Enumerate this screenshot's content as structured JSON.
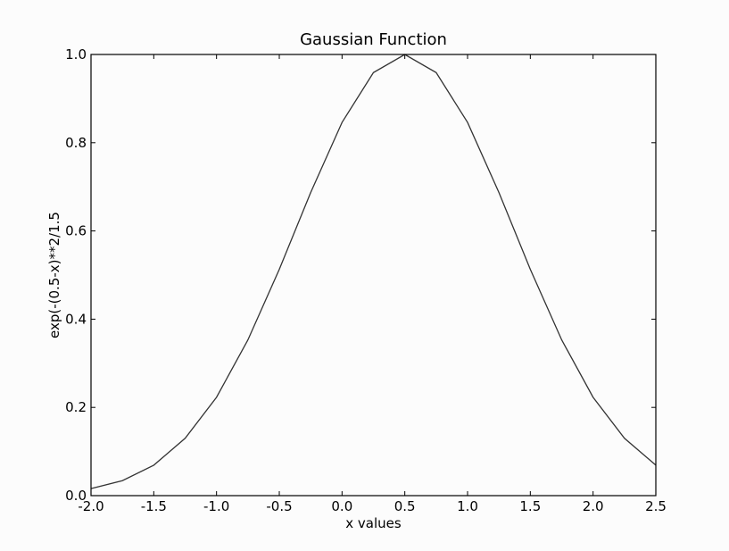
{
  "chart_data": {
    "type": "line",
    "title": "Gaussian Function",
    "xlabel": "x values",
    "ylabel": "exp(-(0.5-x)**2/1.5",
    "xlim": [
      -2.0,
      2.5
    ],
    "ylim": [
      0.0,
      1.0
    ],
    "xticks": [
      "-2.0",
      "-1.5",
      "-1.0",
      "-0.5",
      "0.0",
      "0.5",
      "1.0",
      "1.5",
      "2.0",
      "2.5"
    ],
    "yticks": [
      "0.0",
      "0.2",
      "0.4",
      "0.6",
      "0.8",
      "1.0"
    ],
    "grid": false,
    "line_color": "#333333",
    "series": [
      {
        "x": [
          -2.0,
          -1.75,
          -1.5,
          -1.25,
          -1.0,
          -0.75,
          -0.5,
          -0.25,
          0.0,
          0.25,
          0.5,
          0.75,
          1.0,
          1.25,
          1.5,
          1.75,
          2.0,
          2.25,
          2.5
        ],
        "values": [
          0.016,
          0.034,
          0.069,
          0.13,
          0.223,
          0.353,
          0.513,
          0.687,
          0.846,
          0.959,
          1.0,
          0.959,
          0.846,
          0.687,
          0.513,
          0.353,
          0.223,
          0.13,
          0.069
        ]
      }
    ]
  }
}
